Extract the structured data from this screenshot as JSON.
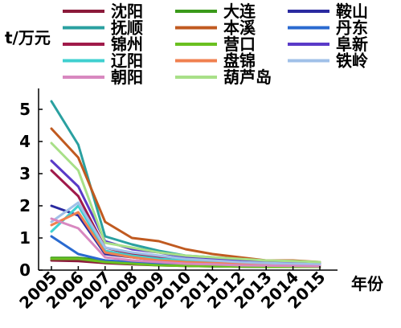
{
  "chart_data": {
    "type": "line",
    "ylabel": "t/万元",
    "xlabel": "年份",
    "x": [
      "2005",
      "2006",
      "2007",
      "2008",
      "2009",
      "2010",
      "2011",
      "2012",
      "2013",
      "2014",
      "2015"
    ],
    "ylim": [
      0,
      5.5
    ],
    "yticks": [
      0,
      1,
      2,
      3,
      4,
      5
    ],
    "grid": false,
    "legend_position": "top",
    "series": [
      {
        "name": "沈阳",
        "color": "#8b1a3a",
        "values": [
          0.3,
          0.28,
          0.22,
          0.18,
          0.15,
          0.13,
          0.12,
          0.11,
          0.1,
          0.1,
          0.1
        ]
      },
      {
        "name": "大连",
        "color": "#3a9a1a",
        "values": [
          0.38,
          0.38,
          0.3,
          0.22,
          0.18,
          0.15,
          0.13,
          0.12,
          0.11,
          0.1,
          0.1
        ]
      },
      {
        "name": "鞍山",
        "color": "#2a2aa0",
        "values": [
          2.0,
          1.7,
          0.5,
          0.4,
          0.3,
          0.25,
          0.2,
          0.18,
          0.16,
          0.15,
          0.14
        ]
      },
      {
        "name": "抚顺",
        "color": "#2aa0a0",
        "values": [
          5.25,
          3.9,
          1.05,
          0.8,
          0.6,
          0.45,
          0.4,
          0.3,
          0.25,
          0.25,
          0.25
        ]
      },
      {
        "name": "本溪",
        "color": "#c05a20",
        "values": [
          4.4,
          3.5,
          1.5,
          1.0,
          0.9,
          0.65,
          0.5,
          0.4,
          0.3,
          0.3,
          0.25
        ]
      },
      {
        "name": "丹东",
        "color": "#2a6ad0",
        "values": [
          1.05,
          0.5,
          0.3,
          0.25,
          0.2,
          0.15,
          0.12,
          0.11,
          0.1,
          0.1,
          0.1
        ]
      },
      {
        "name": "锦州",
        "color": "#a01a4a",
        "values": [
          3.1,
          2.3,
          0.7,
          0.5,
          0.4,
          0.3,
          0.25,
          0.2,
          0.18,
          0.17,
          0.16
        ]
      },
      {
        "name": "营口",
        "color": "#6ac020",
        "values": [
          0.35,
          0.35,
          0.25,
          0.2,
          0.15,
          0.13,
          0.12,
          0.11,
          0.1,
          0.1,
          0.1
        ]
      },
      {
        "name": "阜新",
        "color": "#5a3ac8",
        "values": [
          3.4,
          2.6,
          0.9,
          0.65,
          0.55,
          0.4,
          0.35,
          0.3,
          0.25,
          0.22,
          0.2
        ]
      },
      {
        "name": "辽阳",
        "color": "#40d0d0",
        "values": [
          1.2,
          2.0,
          0.6,
          0.45,
          0.35,
          0.3,
          0.25,
          0.2,
          0.18,
          0.17,
          0.16
        ]
      },
      {
        "name": "盘锦",
        "color": "#f08050",
        "values": [
          1.4,
          1.8,
          0.55,
          0.4,
          0.3,
          0.25,
          0.22,
          0.2,
          0.18,
          0.16,
          0.15
        ]
      },
      {
        "name": "铁岭",
        "color": "#a0c0e8",
        "values": [
          1.5,
          2.1,
          0.7,
          0.55,
          0.45,
          0.35,
          0.3,
          0.25,
          0.22,
          0.2,
          0.18
        ]
      },
      {
        "name": "朝阳",
        "color": "#d888c0",
        "values": [
          1.6,
          1.3,
          0.4,
          0.3,
          0.25,
          0.2,
          0.18,
          0.15,
          0.14,
          0.13,
          0.12
        ]
      },
      {
        "name": "葫芦岛",
        "color": "#a8e088",
        "values": [
          3.95,
          3.1,
          0.85,
          0.7,
          0.55,
          0.45,
          0.4,
          0.35,
          0.3,
          0.28,
          0.25
        ]
      }
    ]
  }
}
